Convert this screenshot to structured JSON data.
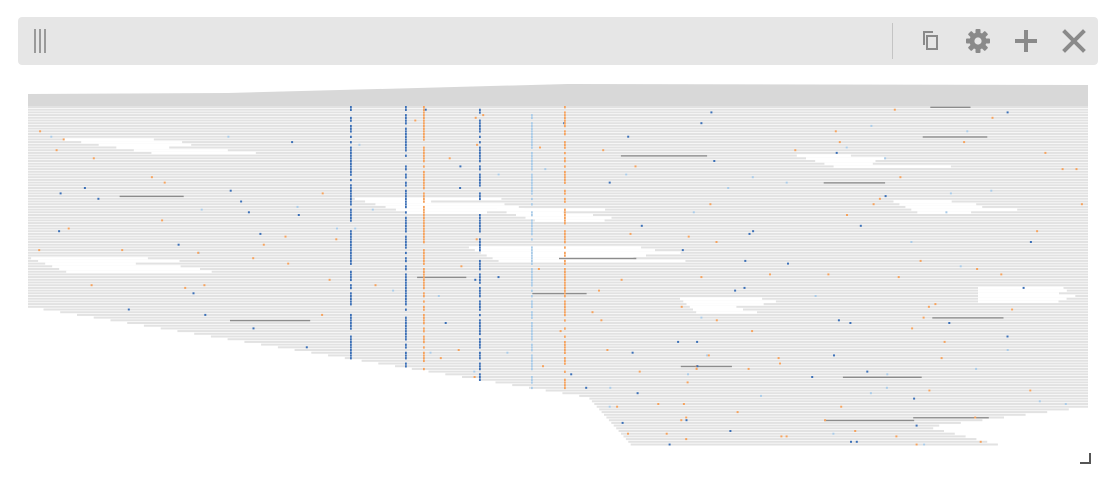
{
  "track": {
    "type": "pileup",
    "controls": [
      {
        "id": "copy",
        "icon": "copy-icon"
      },
      {
        "id": "settings",
        "icon": "gear-icon"
      },
      {
        "id": "add",
        "icon": "plus-icon"
      },
      {
        "id": "close",
        "icon": "close-icon"
      }
    ],
    "colors": {
      "read": "#e2e2e2",
      "coverage": "#d8d8d8",
      "deletion": "#8c8c8c",
      "mismatch_blue": "#3b6fb6",
      "mismatch_orange": "#f5a25d",
      "mismatch_light": "#a9cbe8"
    }
  }
}
